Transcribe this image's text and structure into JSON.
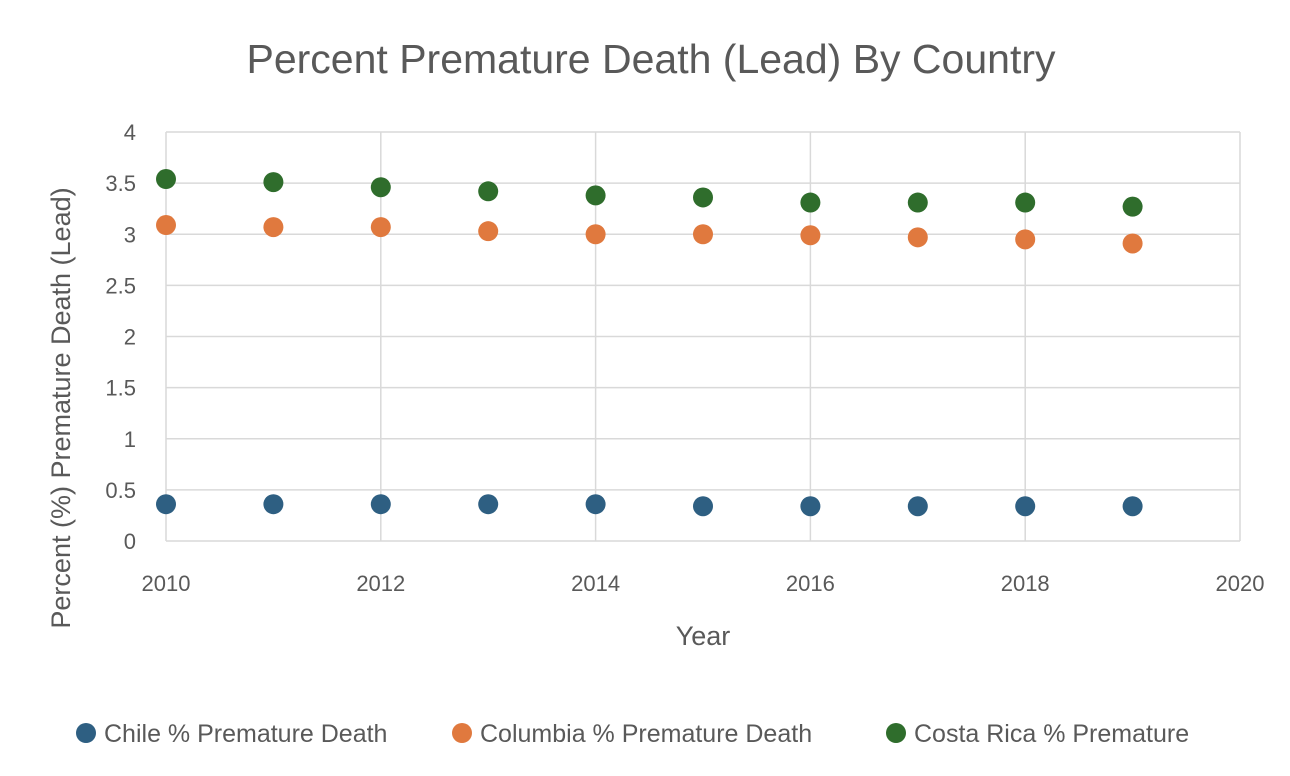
{
  "chart_data": {
    "type": "scatter",
    "title": "Percent Premature Death (Lead) By Country",
    "xlabel": "Year",
    "ylabel": "Percent (%) Premature Death (Lead)",
    "xlim": [
      2010,
      2020
    ],
    "ylim": [
      0,
      4
    ],
    "xticks": [
      "2010",
      "2012",
      "2014",
      "2016",
      "2018",
      "2020"
    ],
    "yticks": [
      "0",
      "0.5",
      "1",
      "1.5",
      "2",
      "2.5",
      "3",
      "3.5",
      "4"
    ],
    "grid": true,
    "legend_position": "bottom",
    "x": [
      2010,
      2011,
      2012,
      2013,
      2014,
      2015,
      2016,
      2017,
      2018,
      2019
    ],
    "series": [
      {
        "name": "Chile % Premature Death",
        "color": "#2e5f82",
        "values": [
          0.36,
          0.36,
          0.36,
          0.36,
          0.36,
          0.34,
          0.34,
          0.34,
          0.34,
          0.34
        ]
      },
      {
        "name": "Columbia % Premature Death",
        "color": "#e0793e",
        "values": [
          3.09,
          3.07,
          3.07,
          3.03,
          3.0,
          3.0,
          2.99,
          2.97,
          2.95,
          2.91
        ]
      },
      {
        "name": "Costa Rica % Premature",
        "color": "#2f6d2c",
        "values": [
          3.54,
          3.51,
          3.46,
          3.42,
          3.38,
          3.36,
          3.31,
          3.31,
          3.31,
          3.27
        ]
      }
    ]
  }
}
